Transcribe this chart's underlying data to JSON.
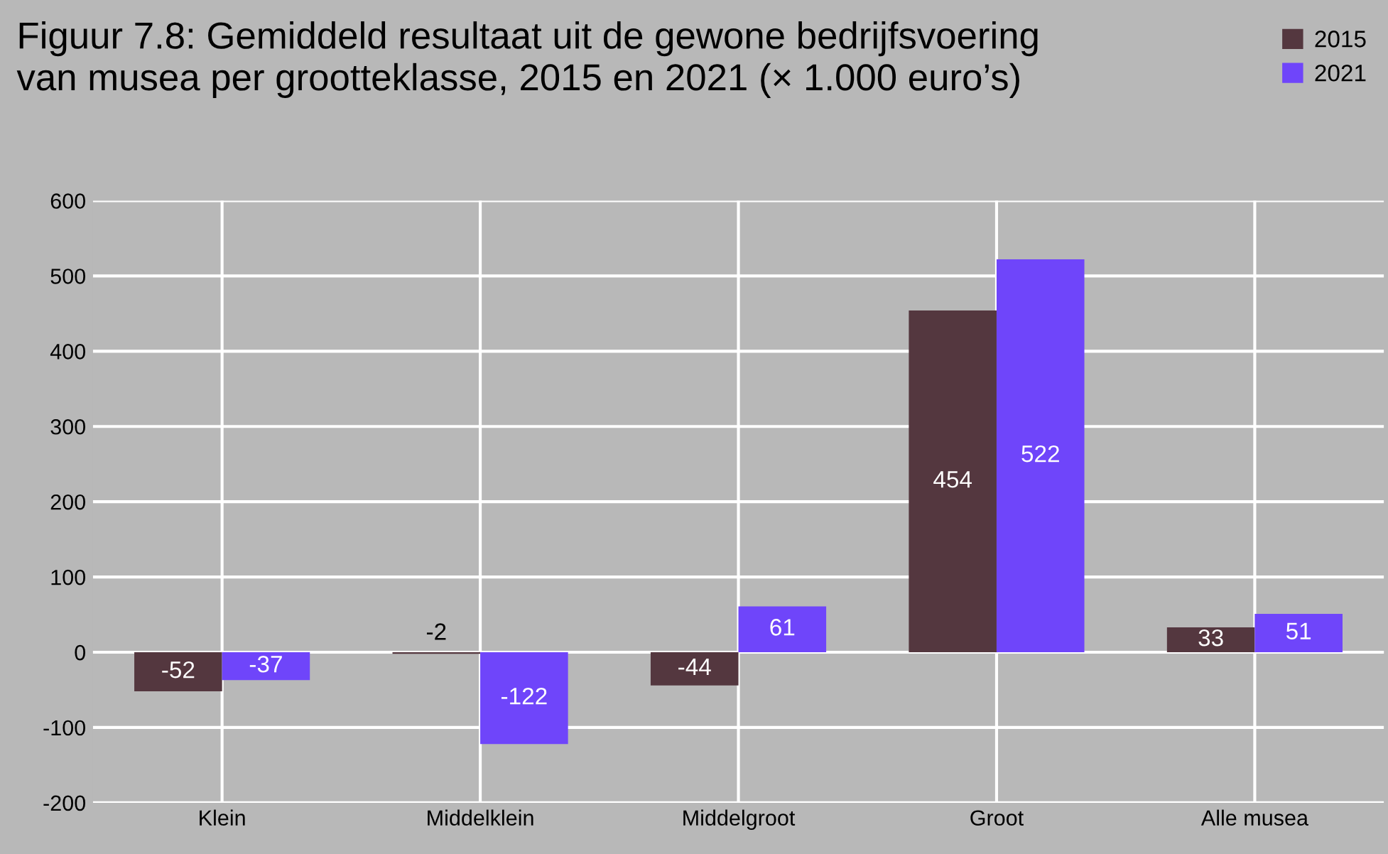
{
  "chart_data": {
    "type": "bar",
    "title": "Figuur 7.8: Gemiddeld resultaat uit de gewone bedrijfsvoering\nvan musea per grootteklasse, 2015 en 2021 (× 1.000 euro’s)",
    "categories": [
      "Klein",
      "Middelklein",
      "Middelgroot",
      "Groot",
      "Alle musea"
    ],
    "series": [
      {
        "name": "2015",
        "color": "#54373f",
        "values": [
          -52,
          -2,
          -44,
          454,
          33
        ]
      },
      {
        "name": "2021",
        "color": "#6f45fa",
        "values": [
          -37,
          -122,
          61,
          522,
          51
        ]
      }
    ],
    "ylim": [
      -200,
      600
    ],
    "yticks": [
      -200,
      -100,
      0,
      100,
      200,
      300,
      400,
      500,
      600
    ],
    "grid": true,
    "legend": "top right",
    "data_labels": true
  }
}
